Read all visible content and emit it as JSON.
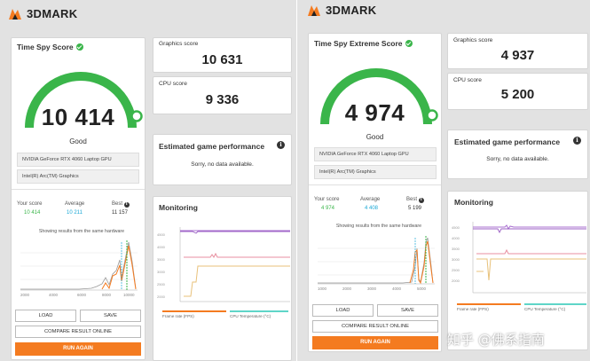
{
  "brand": {
    "name": "3DMARK",
    "accent": "#f47b20",
    "gauge_green": "#3ab54a"
  },
  "left": {
    "score_title": "Time Spy Score",
    "score": "10 414",
    "rating": "Good",
    "gauge_fraction": 0.98,
    "hardware": [
      "NVIDIA GeForce RTX 4060 Laptop GPU",
      "Intel(R) Arc(TM) Graphics"
    ],
    "compare": {
      "your_label": "Your score",
      "your_value": "10 414",
      "avg_label": "Average",
      "avg_value": "10 211",
      "best_label": "Best",
      "best_value": "11 157"
    },
    "hist_caption": "Showing results from the same hardware",
    "graphics": {
      "label": "Graphics score",
      "value": "10 631"
    },
    "cpu": {
      "label": "CPU score",
      "value": "9 336"
    },
    "egp": {
      "title": "Estimated game performance",
      "text": "Sorry, no data available."
    },
    "monitoring": {
      "title": "Monitoring",
      "legend1": "Frame rate (FPS)",
      "legend2": "CPU Temperature (°C)"
    },
    "buttons": {
      "load": "LOAD",
      "save": "SAVE",
      "compare": "COMPARE RESULT ONLINE",
      "run": "RUN AGAIN"
    }
  },
  "right": {
    "score_title": "Time Spy Extreme Score",
    "score": "4 974",
    "rating": "Good",
    "gauge_fraction": 0.98,
    "hardware": [
      "NVIDIA GeForce RTX 4060 Laptop GPU",
      "Intel(R) Arc(TM) Graphics"
    ],
    "compare": {
      "your_label": "Your score",
      "your_value": "4 974",
      "avg_label": "Average",
      "avg_value": "4 408",
      "best_label": "Best",
      "best_value": "5 199"
    },
    "hist_caption": "Showing results from the same hardware",
    "graphics": {
      "label": "Graphics score",
      "value": "4 937"
    },
    "cpu": {
      "label": "CPU score",
      "value": "5 200"
    },
    "egp": {
      "title": "Estimated game performance",
      "text": "Sorry, no data available."
    },
    "monitoring": {
      "title": "Monitoring",
      "legend1": "Frame rate (FPS)",
      "legend2": "CPU Temperature (°C)"
    },
    "buttons": {
      "load": "LOAD",
      "save": "SAVE",
      "compare": "COMPARE RESULT ONLINE",
      "run": "RUN AGAIN"
    }
  },
  "watermark": "知乎 @佛系指南"
}
